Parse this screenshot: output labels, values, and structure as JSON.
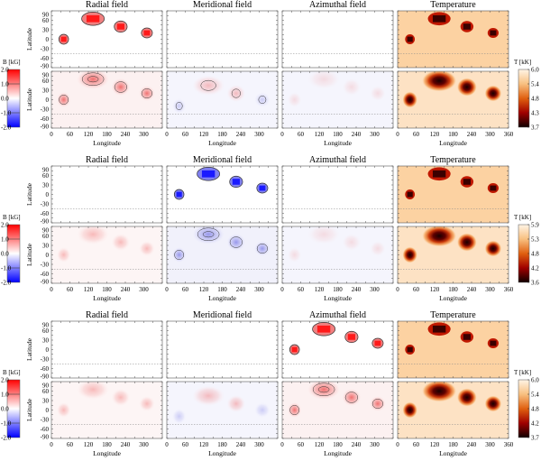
{
  "axes": {
    "ylabel": "Latitude",
    "xlabel": "Longitude",
    "lat_ticks": [
      "90",
      "60",
      "30",
      "0",
      "-30",
      "-60",
      "-90"
    ],
    "lon_ticks": [
      "0",
      "60",
      "120",
      "180",
      "240",
      "300"
    ],
    "lon_ticks_last": [
      "0",
      "60",
      "120",
      "180",
      "240",
      "300",
      "360"
    ]
  },
  "groups": [
    {
      "titles": [
        "Radial field",
        "Meridional field",
        "Azimuthal field",
        "Temperature"
      ],
      "active_component": "radial",
      "active_sign": "positive",
      "b_colorbar": {
        "label": "B [kG]",
        "ticks": [
          "2.0",
          "1.0",
          "0.0",
          "-1.0",
          "-2.0"
        ]
      },
      "t_colorbar": {
        "label": "T [kK]",
        "ticks": [
          "6.0",
          "5.4",
          "4.8",
          "4.3",
          "3.7"
        ]
      }
    },
    {
      "titles": [
        "Radial field",
        "Meridional field",
        "Azimuthal field",
        "Temperature"
      ],
      "active_component": "meridional",
      "active_sign": "negative",
      "b_colorbar": {
        "label": "B [kG]",
        "ticks": [
          "2.0",
          "1.0",
          "0.0",
          "-1.0",
          "-2.0"
        ]
      },
      "t_colorbar": {
        "label": "T [kK]",
        "ticks": [
          "5.9",
          "5.3",
          "4.8",
          "4.2",
          "3.6"
        ]
      }
    },
    {
      "titles": [
        "Radial field",
        "Meridional field",
        "Azimuthal field",
        "Temperature"
      ],
      "active_component": "azimuthal",
      "active_sign": "positive",
      "b_colorbar": {
        "label": "B [kG]",
        "ticks": [
          "2.0",
          "1.0",
          "0.0",
          "-1.0",
          "-2.0"
        ]
      },
      "t_colorbar": {
        "label": "T [kK]",
        "ticks": [
          "6.0",
          "5.4",
          "4.8",
          "4.2",
          "3.7"
        ]
      }
    }
  ],
  "colors": {
    "positive": "#ff1a1a",
    "negative": "#1a1aff",
    "spot_dark": "#3a0000",
    "photosphere": "#fcd2a2"
  },
  "chart_data": {
    "type": "heatmap",
    "xlim": [
      0,
      360
    ],
    "ylim": [
      -90,
      90
    ],
    "b_range_kG": [
      -2.0,
      2.0
    ],
    "reference_latitude_line": -45,
    "spots": [
      {
        "lon": 40,
        "lat": 0,
        "dlon": 15,
        "dlat": 15
      },
      {
        "lon": 135,
        "lat": 65,
        "dlon": 35,
        "dlat": 20
      },
      {
        "lon": 225,
        "lat": 40,
        "dlon": 20,
        "dlat": 17
      },
      {
        "lon": 310,
        "lat": 20,
        "dlon": 17,
        "dlat": 15
      }
    ]
  }
}
